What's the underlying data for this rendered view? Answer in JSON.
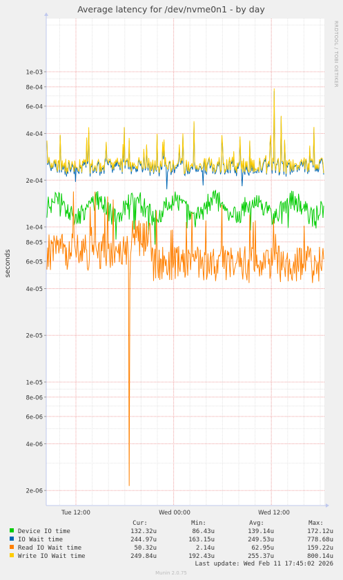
{
  "chart_data": {
    "type": "line",
    "title": "Average latency for /dev/nvme0n1 - by day",
    "ylabel": "seconds",
    "yscale": "log",
    "ylim": [
      1.6e-06,
      0.0022
    ],
    "y_ticks": [
      {
        "value": 0.001,
        "label": "1e-03"
      },
      {
        "value": 0.0008,
        "label": "8e-04"
      },
      {
        "value": 0.0006,
        "label": "6e-04"
      },
      {
        "value": 0.0004,
        "label": "4e-04"
      },
      {
        "value": 0.0002,
        "label": "2e-04"
      },
      {
        "value": 0.0001,
        "label": "1e-04"
      },
      {
        "value": 8e-05,
        "label": "8e-05"
      },
      {
        "value": 6e-05,
        "label": "6e-05"
      },
      {
        "value": 4e-05,
        "label": "4e-05"
      },
      {
        "value": 2e-05,
        "label": "2e-05"
      },
      {
        "value": 1e-05,
        "label": "1e-05"
      },
      {
        "value": 8e-06,
        "label": "8e-06"
      },
      {
        "value": 6e-06,
        "label": "6e-06"
      },
      {
        "value": 4e-06,
        "label": "4e-06"
      },
      {
        "value": 2e-06,
        "label": "2e-06"
      }
    ],
    "x_ticks": [
      {
        "value": "Tue 12:00",
        "label": "Tue 12:00"
      },
      {
        "value": "Wed 00:00",
        "label": "Wed 00:00"
      },
      {
        "value": "Wed 12:00",
        "label": "Wed 12:00"
      }
    ],
    "grid": true,
    "legend_position": "bottom",
    "watermark": "RRDTOOL / TOBI OETIKER",
    "legend_headers": {
      "cur": "Cur:",
      "min": "Min:",
      "avg": "Avg:",
      "max": "Max:"
    },
    "series": [
      {
        "name": "Device IO time",
        "color": "#00cc00",
        "cur": "132.32u",
        "min": "86.43u",
        "avg": "139.14u",
        "max": "172.12u"
      },
      {
        "name": "IO Wait time",
        "color": "#0066b3",
        "cur": "244.97u",
        "min": "163.15u",
        "avg": "249.53u",
        "max": "778.68u"
      },
      {
        "name": "Read IO Wait time",
        "color": "#ff8000",
        "cur": "50.32u",
        "min": "2.14u",
        "avg": "62.95u",
        "max": "159.22u"
      },
      {
        "name": "Write IO Wait time",
        "color": "#ffcc00",
        "cur": "249.84u",
        "min": "192.43u",
        "avg": "255.37u",
        "max": "800.14u"
      }
    ],
    "last_update": "Last update: Wed Feb 11 17:45:02 2026",
    "footer": "Munin 2.0.75"
  }
}
